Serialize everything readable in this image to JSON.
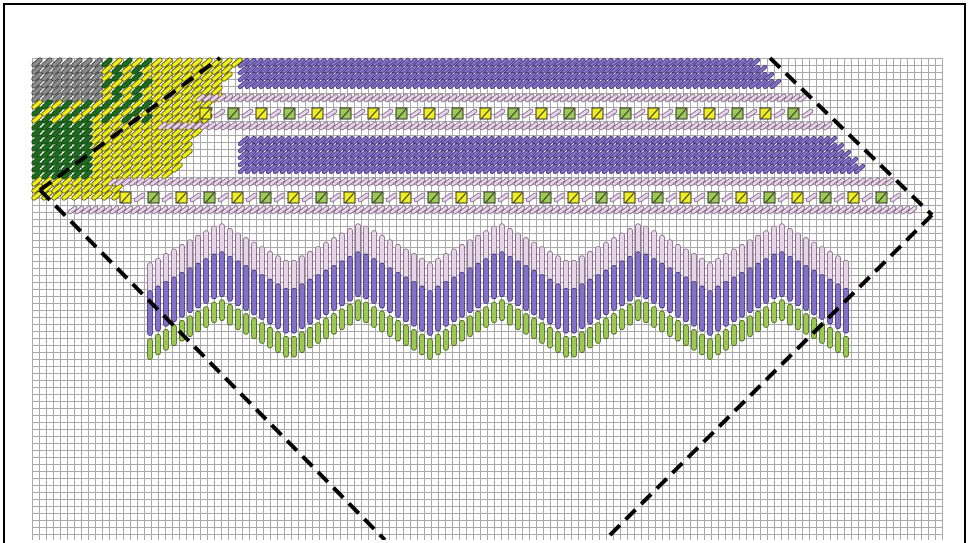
{
  "diagram": {
    "kind": "needlepoint stitch chart",
    "colors": {
      "canvas_bg": "#ffffff",
      "grid_line": "#a9a9a9",
      "lavender": "#8470c8",
      "lavender_edge": "#3c2f7a",
      "pale_pink": "#e9d3ea",
      "pale_pink_edge": "#7a5f7a",
      "yellow": "#f2ee1c",
      "yellow_edge": "#4a4a00",
      "lime_green": "#9bc853",
      "lime_edge": "#3a5a12",
      "dark_green": "#1b6f1b",
      "dark_green_edge": "#0b3a0b",
      "grey": "#8c8c8c",
      "grey_edge": "#3a3a3a",
      "teal": "#1b5e78",
      "border_dash": "#000000"
    },
    "legend": []
  }
}
